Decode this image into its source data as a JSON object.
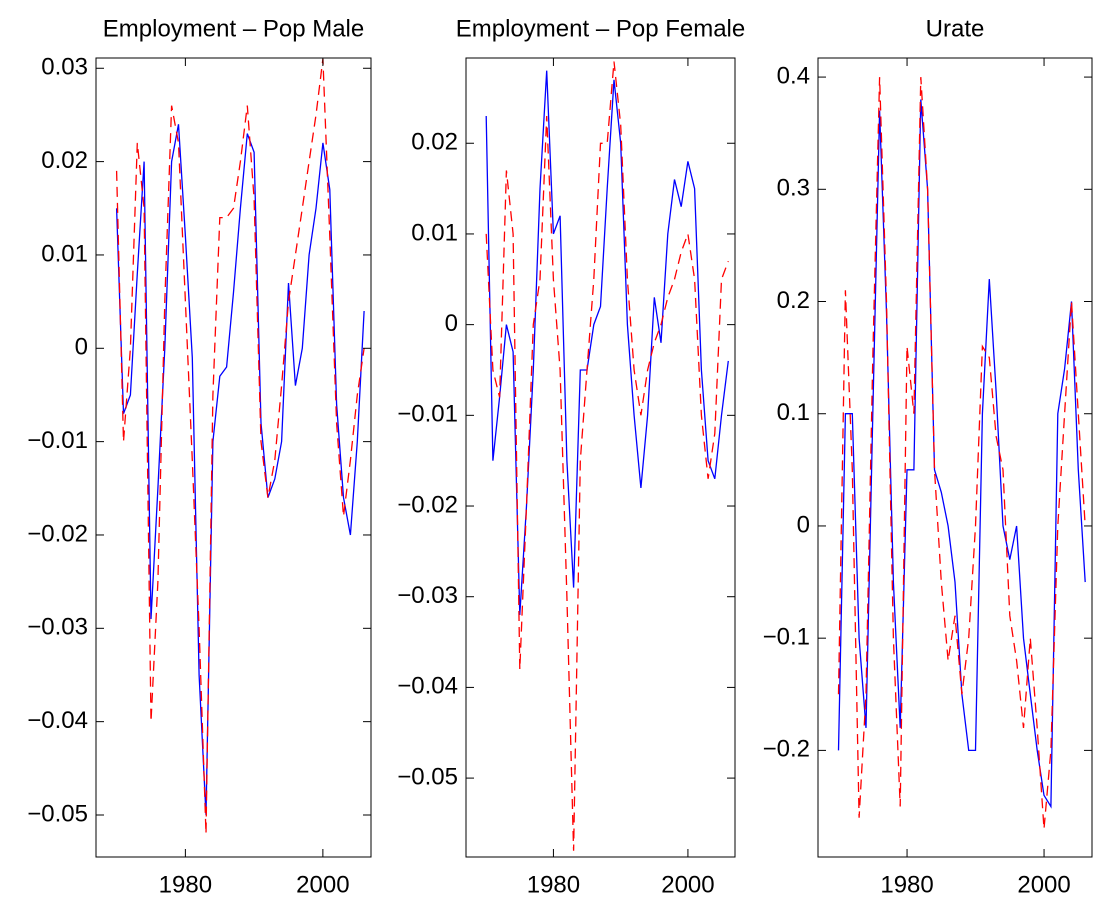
{
  "chart_data": [
    {
      "type": "line",
      "title": "Employment – Pop Male",
      "x": [
        1970,
        1971,
        1972,
        1973,
        1974,
        1975,
        1976,
        1977,
        1978,
        1979,
        1980,
        1981,
        1982,
        1983,
        1984,
        1985,
        1986,
        1987,
        1988,
        1989,
        1990,
        1991,
        1992,
        1993,
        1994,
        1995,
        1996,
        1997,
        1998,
        1999,
        2000,
        2001,
        2002,
        2003,
        2004,
        2005,
        2006
      ],
      "series": [
        {
          "color": "#0000ff",
          "style": "solid",
          "values": [
            0.015,
            -0.007,
            -0.005,
            0.008,
            0.02,
            -0.029,
            -0.015,
            0.0,
            0.02,
            0.024,
            0.012,
            -0.001,
            -0.035,
            -0.05,
            -0.01,
            -0.003,
            -0.002,
            0.006,
            0.015,
            0.023,
            0.021,
            -0.008,
            -0.016,
            -0.014,
            -0.01,
            0.007,
            -0.004,
            0.0,
            0.01,
            0.015,
            0.022,
            0.017,
            -0.006,
            -0.016,
            -0.02,
            -0.01,
            0.004
          ]
        },
        {
          "color": "#ff0000",
          "style": "dashed",
          "values": [
            0.019,
            -0.01,
            0.0,
            0.022,
            0.015,
            -0.04,
            -0.025,
            0.005,
            0.026,
            0.022,
            0.005,
            -0.012,
            -0.03,
            -0.052,
            -0.005,
            0.014,
            0.014,
            0.015,
            0.02,
            0.026,
            0.016,
            -0.01,
            -0.016,
            -0.012,
            -0.004,
            0.005,
            0.01,
            0.015,
            0.02,
            0.025,
            0.031,
            0.012,
            -0.008,
            -0.018,
            -0.012,
            -0.005,
            0.0
          ]
        }
      ],
      "xlim": [
        1967,
        2007
      ],
      "xticks": [
        1980,
        2000
      ],
      "ylim": [
        -0.0545,
        0.0311
      ],
      "yticks": [
        {
          "value": -0.05,
          "label": "−0.05"
        },
        {
          "value": -0.04,
          "label": "−0.04"
        },
        {
          "value": -0.03,
          "label": "−0.03"
        },
        {
          "value": -0.02,
          "label": "−0.02"
        },
        {
          "value": -0.01,
          "label": "−0.01"
        },
        0,
        0.01,
        0.02,
        0.03
      ],
      "box": true
    },
    {
      "type": "line",
      "title": "Employment – Pop Female",
      "x": [
        1970,
        1971,
        1972,
        1973,
        1974,
        1975,
        1976,
        1977,
        1978,
        1979,
        1980,
        1981,
        1982,
        1983,
        1984,
        1985,
        1986,
        1987,
        1988,
        1989,
        1990,
        1991,
        1992,
        1993,
        1994,
        1995,
        1996,
        1997,
        1998,
        1999,
        2000,
        2001,
        2002,
        2003,
        2004,
        2005,
        2006
      ],
      "series": [
        {
          "color": "#0000ff",
          "style": "solid",
          "values": [
            0.023,
            -0.015,
            -0.008,
            0.0,
            -0.003,
            -0.032,
            -0.02,
            -0.005,
            0.015,
            0.028,
            0.01,
            0.012,
            -0.015,
            -0.029,
            -0.005,
            -0.005,
            0.0,
            0.002,
            0.015,
            0.027,
            0.02,
            0.0,
            -0.01,
            -0.018,
            -0.01,
            0.003,
            -0.002,
            0.01,
            0.016,
            0.013,
            0.018,
            0.015,
            -0.005,
            -0.015,
            -0.017,
            -0.01,
            -0.004
          ]
        },
        {
          "color": "#ff0000",
          "style": "dashed",
          "values": [
            0.01,
            -0.005,
            -0.008,
            0.017,
            0.01,
            -0.038,
            -0.02,
            0.0,
            0.005,
            0.023,
            0.005,
            -0.005,
            -0.03,
            -0.058,
            -0.015,
            -0.005,
            0.005,
            0.02,
            0.02,
            0.029,
            0.022,
            0.005,
            -0.005,
            -0.01,
            -0.005,
            -0.002,
            0.0,
            0.003,
            0.005,
            0.008,
            0.01,
            0.005,
            -0.01,
            -0.017,
            -0.012,
            0.005,
            0.007
          ]
        }
      ],
      "xlim": [
        1967,
        2007
      ],
      "xticks": [
        1980,
        2000
      ],
      "ylim": [
        -0.0587,
        0.0294
      ],
      "yticks": [
        {
          "value": -0.05,
          "label": "−0.05"
        },
        {
          "value": -0.04,
          "label": "−0.04"
        },
        {
          "value": -0.03,
          "label": "−0.03"
        },
        {
          "value": -0.02,
          "label": "−0.02"
        },
        {
          "value": -0.01,
          "label": "−0.01"
        },
        0,
        0.01,
        0.02
      ],
      "box": true
    },
    {
      "type": "line",
      "title": "Urate",
      "x": [
        1970,
        1971,
        1972,
        1973,
        1974,
        1975,
        1976,
        1977,
        1978,
        1979,
        1980,
        1981,
        1982,
        1983,
        1984,
        1985,
        1986,
        1987,
        1988,
        1989,
        1990,
        1991,
        1992,
        1993,
        1994,
        1995,
        1996,
        1997,
        1998,
        1999,
        2000,
        2001,
        2002,
        2003,
        2004,
        2005,
        2006
      ],
      "series": [
        {
          "color": "#0000ff",
          "style": "solid",
          "values": [
            -0.2,
            0.1,
            0.1,
            -0.1,
            -0.18,
            0.1,
            0.37,
            0.19,
            -0.05,
            -0.18,
            0.05,
            0.05,
            0.38,
            0.3,
            0.05,
            0.03,
            0.0,
            -0.05,
            -0.15,
            -0.2,
            -0.2,
            0.1,
            0.22,
            0.12,
            0.0,
            -0.03,
            0.0,
            -0.1,
            -0.15,
            -0.2,
            -0.24,
            -0.25,
            0.1,
            0.14,
            0.2,
            0.05,
            -0.05
          ]
        },
        {
          "color": "#ff0000",
          "style": "dashed",
          "values": [
            -0.15,
            0.21,
            0.05,
            -0.26,
            -0.15,
            0.15,
            0.4,
            0.2,
            -0.1,
            -0.25,
            0.16,
            0.1,
            0.4,
            0.3,
            0.05,
            -0.05,
            -0.12,
            -0.08,
            -0.15,
            -0.1,
            0.0,
            0.16,
            0.15,
            0.08,
            0.05,
            -0.08,
            -0.12,
            -0.18,
            -0.1,
            -0.18,
            -0.27,
            -0.2,
            0.0,
            0.1,
            0.2,
            0.1,
            0.0
          ]
        }
      ],
      "xlim": [
        1967,
        2007
      ],
      "xticks": [
        1980,
        2000
      ],
      "ylim": [
        -0.295,
        0.417
      ],
      "yticks": [
        {
          "value": -0.2,
          "label": "−0.2"
        },
        {
          "value": -0.1,
          "label": "−0.1"
        },
        0,
        0.1,
        0.2,
        0.3,
        0.4
      ],
      "box": true
    }
  ]
}
